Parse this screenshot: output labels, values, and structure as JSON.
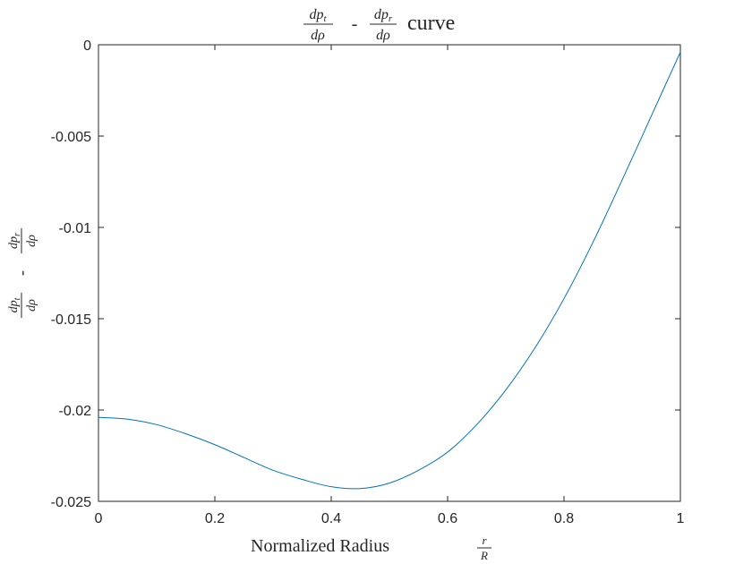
{
  "chart_data": {
    "type": "line",
    "title": {
      "frac1_num": "dp",
      "frac1_num_sub": "t",
      "frac1_den": "dρ",
      "minus": "-",
      "frac2_num": "dp",
      "frac2_num_sub": "r",
      "frac2_den": "dρ",
      "word": "curve"
    },
    "xlabel": {
      "text": "Normalized Radius",
      "frac_num": "r",
      "frac_den": "R"
    },
    "ylabel": {
      "frac1_num": "dp",
      "frac1_num_sub": "t",
      "frac1_den": "dρ",
      "minus": "-",
      "frac2_num": "dp",
      "frac2_num_sub": "r",
      "frac2_den": "dρ"
    },
    "xlim": [
      0,
      1
    ],
    "ylim": [
      -0.025,
      0
    ],
    "xticks": [
      0,
      0.2,
      0.4,
      0.6,
      0.8,
      1
    ],
    "xtick_labels": [
      "0",
      "0.2",
      "0.4",
      "0.6",
      "0.8",
      "1"
    ],
    "yticks": [
      0,
      -0.005,
      -0.01,
      -0.015,
      -0.02,
      -0.025
    ],
    "ytick_labels": [
      "0",
      "-0.005",
      "-0.01",
      "-0.015",
      "-0.02",
      "-0.025"
    ],
    "grid": false,
    "series": [
      {
        "color": "#0072bd",
        "x": [
          0,
          0.05,
          0.1,
          0.15,
          0.2,
          0.25,
          0.3,
          0.35,
          0.4,
          0.45,
          0.5,
          0.55,
          0.6,
          0.65,
          0.7,
          0.75,
          0.8,
          0.85,
          0.9,
          0.95,
          1.0
        ],
        "y": [
          -0.0204,
          -0.0205,
          -0.0208,
          -0.0213,
          -0.0219,
          -0.0226,
          -0.0233,
          -0.0238,
          -0.0242,
          -0.0243,
          -0.024,
          -0.0233,
          -0.0223,
          -0.0208,
          -0.0189,
          -0.0166,
          -0.0139,
          -0.0108,
          -0.0074,
          -0.0039,
          -0.0004
        ]
      }
    ]
  }
}
